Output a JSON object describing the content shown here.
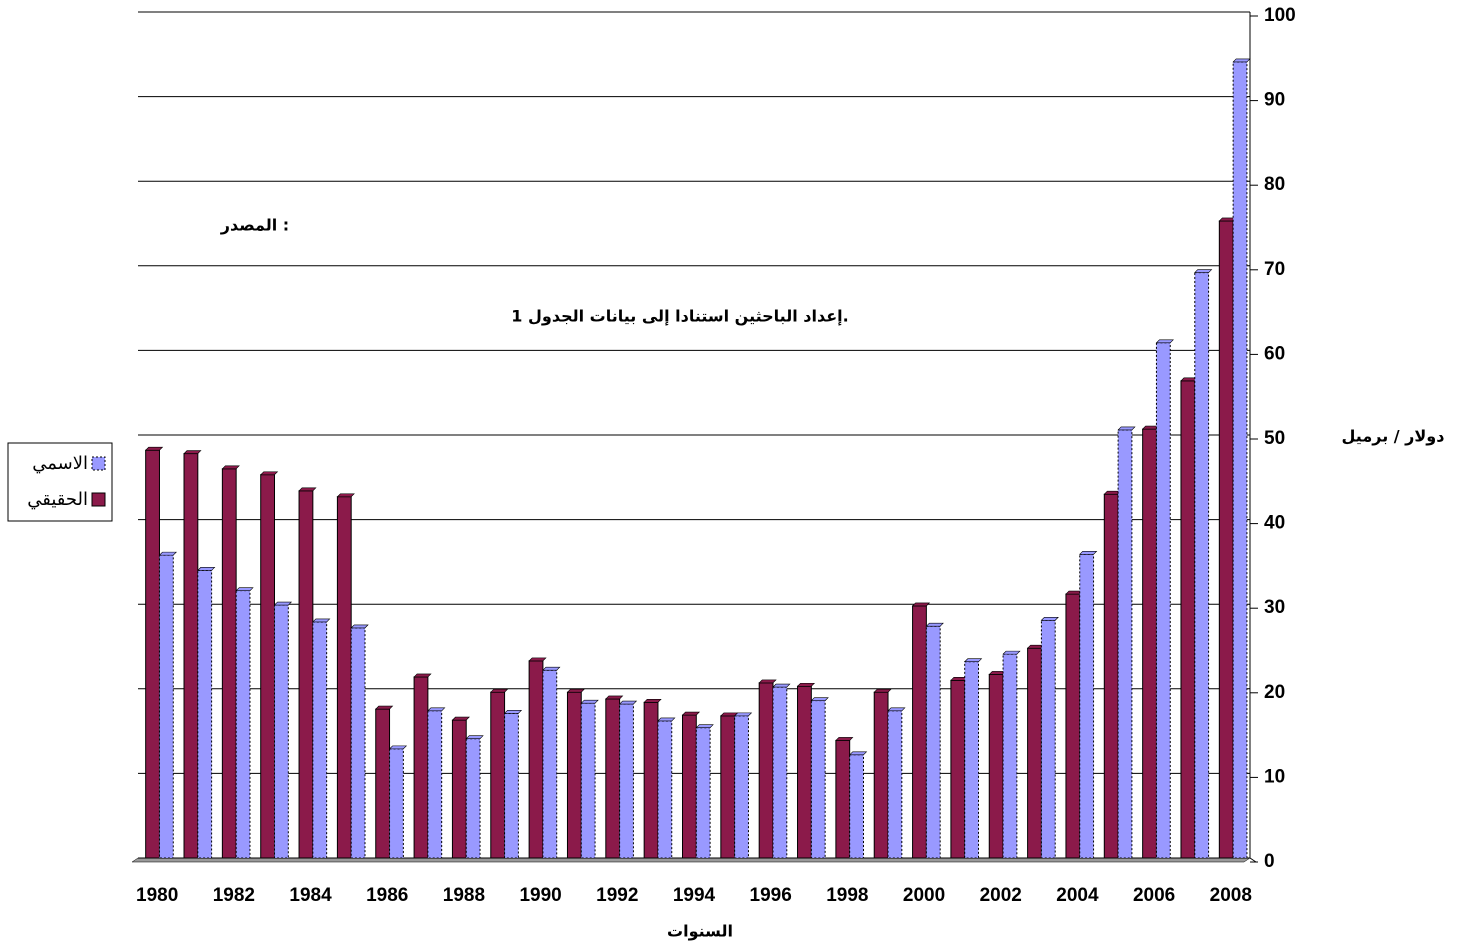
{
  "chart_data": {
    "type": "bar",
    "categories": [
      "1980",
      null,
      "1982",
      null,
      "1984",
      null,
      "1986",
      null,
      "1988",
      null,
      "1990",
      null,
      "1992",
      null,
      "1994",
      null,
      "1996",
      null,
      "1998",
      null,
      "2000",
      null,
      "2002",
      null,
      "2004",
      null,
      "2006",
      null,
      "2008"
    ],
    "series": [
      {
        "name": "الحقيقي",
        "color": "#8b1a4a",
        "values": [
          48.2,
          47.8,
          46.0,
          45.3,
          43.4,
          42.7,
          17.6,
          21.4,
          16.3,
          19.6,
          23.3,
          19.6,
          18.8,
          18.4,
          16.9,
          16.8,
          20.7,
          20.3,
          13.9,
          19.6,
          29.8,
          21.0,
          21.7,
          24.8,
          31.2,
          43.0,
          50.7,
          56.4,
          75.3
        ]
      },
      {
        "name": "الاسمي",
        "color": "#9999ff",
        "values": [
          35.8,
          34.0,
          31.6,
          29.9,
          27.9,
          27.2,
          12.9,
          17.4,
          14.1,
          17.1,
          22.2,
          18.3,
          18.2,
          16.2,
          15.4,
          16.8,
          20.2,
          18.6,
          12.2,
          17.4,
          27.4,
          23.2,
          24.1,
          28.1,
          35.9,
          50.6,
          60.9,
          69.2,
          94.1
        ]
      }
    ],
    "ylim": [
      0,
      100
    ],
    "yticks": [
      0,
      10,
      20,
      30,
      40,
      50,
      60,
      70,
      80,
      90,
      100
    ],
    "y_axis_side": "right",
    "grid": true,
    "legend": "left",
    "ylabel": "دولار / برميل",
    "xlabel": "السنوات",
    "annotations": [
      "المصدر :",
      "إعداد الباحثين استنادا إلى بيانات الجدول 1."
    ]
  }
}
